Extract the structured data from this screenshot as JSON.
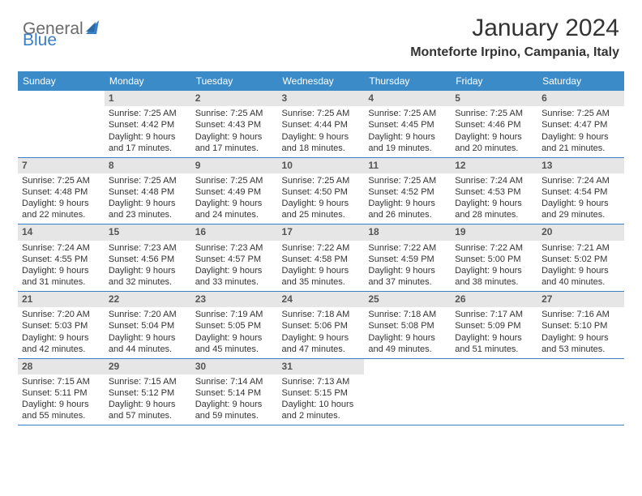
{
  "logo": {
    "word1": "General",
    "word2": "Blue"
  },
  "title": "January 2024",
  "location": "Monteforte Irpino, Campania, Italy",
  "colors": {
    "header_bg": "#3b8bc9",
    "header_text": "#ffffff",
    "daynum_bg": "#e6e6e6",
    "border": "#3b7fc4",
    "logo_gray": "#6b6b6b",
    "logo_blue": "#3b7fc4"
  },
  "day_headers": [
    "Sunday",
    "Monday",
    "Tuesday",
    "Wednesday",
    "Thursday",
    "Friday",
    "Saturday"
  ],
  "cells": [
    {
      "blank": true
    },
    {
      "day": "1",
      "sunrise": "Sunrise: 7:25 AM",
      "sunset": "Sunset: 4:42 PM",
      "daylight1": "Daylight: 9 hours",
      "daylight2": "and 17 minutes."
    },
    {
      "day": "2",
      "sunrise": "Sunrise: 7:25 AM",
      "sunset": "Sunset: 4:43 PM",
      "daylight1": "Daylight: 9 hours",
      "daylight2": "and 17 minutes."
    },
    {
      "day": "3",
      "sunrise": "Sunrise: 7:25 AM",
      "sunset": "Sunset: 4:44 PM",
      "daylight1": "Daylight: 9 hours",
      "daylight2": "and 18 minutes."
    },
    {
      "day": "4",
      "sunrise": "Sunrise: 7:25 AM",
      "sunset": "Sunset: 4:45 PM",
      "daylight1": "Daylight: 9 hours",
      "daylight2": "and 19 minutes."
    },
    {
      "day": "5",
      "sunrise": "Sunrise: 7:25 AM",
      "sunset": "Sunset: 4:46 PM",
      "daylight1": "Daylight: 9 hours",
      "daylight2": "and 20 minutes."
    },
    {
      "day": "6",
      "sunrise": "Sunrise: 7:25 AM",
      "sunset": "Sunset: 4:47 PM",
      "daylight1": "Daylight: 9 hours",
      "daylight2": "and 21 minutes."
    },
    {
      "day": "7",
      "sunrise": "Sunrise: 7:25 AM",
      "sunset": "Sunset: 4:48 PM",
      "daylight1": "Daylight: 9 hours",
      "daylight2": "and 22 minutes."
    },
    {
      "day": "8",
      "sunrise": "Sunrise: 7:25 AM",
      "sunset": "Sunset: 4:48 PM",
      "daylight1": "Daylight: 9 hours",
      "daylight2": "and 23 minutes."
    },
    {
      "day": "9",
      "sunrise": "Sunrise: 7:25 AM",
      "sunset": "Sunset: 4:49 PM",
      "daylight1": "Daylight: 9 hours",
      "daylight2": "and 24 minutes."
    },
    {
      "day": "10",
      "sunrise": "Sunrise: 7:25 AM",
      "sunset": "Sunset: 4:50 PM",
      "daylight1": "Daylight: 9 hours",
      "daylight2": "and 25 minutes."
    },
    {
      "day": "11",
      "sunrise": "Sunrise: 7:25 AM",
      "sunset": "Sunset: 4:52 PM",
      "daylight1": "Daylight: 9 hours",
      "daylight2": "and 26 minutes."
    },
    {
      "day": "12",
      "sunrise": "Sunrise: 7:24 AM",
      "sunset": "Sunset: 4:53 PM",
      "daylight1": "Daylight: 9 hours",
      "daylight2": "and 28 minutes."
    },
    {
      "day": "13",
      "sunrise": "Sunrise: 7:24 AM",
      "sunset": "Sunset: 4:54 PM",
      "daylight1": "Daylight: 9 hours",
      "daylight2": "and 29 minutes."
    },
    {
      "day": "14",
      "sunrise": "Sunrise: 7:24 AM",
      "sunset": "Sunset: 4:55 PM",
      "daylight1": "Daylight: 9 hours",
      "daylight2": "and 31 minutes."
    },
    {
      "day": "15",
      "sunrise": "Sunrise: 7:23 AM",
      "sunset": "Sunset: 4:56 PM",
      "daylight1": "Daylight: 9 hours",
      "daylight2": "and 32 minutes."
    },
    {
      "day": "16",
      "sunrise": "Sunrise: 7:23 AM",
      "sunset": "Sunset: 4:57 PM",
      "daylight1": "Daylight: 9 hours",
      "daylight2": "and 33 minutes."
    },
    {
      "day": "17",
      "sunrise": "Sunrise: 7:22 AM",
      "sunset": "Sunset: 4:58 PM",
      "daylight1": "Daylight: 9 hours",
      "daylight2": "and 35 minutes."
    },
    {
      "day": "18",
      "sunrise": "Sunrise: 7:22 AM",
      "sunset": "Sunset: 4:59 PM",
      "daylight1": "Daylight: 9 hours",
      "daylight2": "and 37 minutes."
    },
    {
      "day": "19",
      "sunrise": "Sunrise: 7:22 AM",
      "sunset": "Sunset: 5:00 PM",
      "daylight1": "Daylight: 9 hours",
      "daylight2": "and 38 minutes."
    },
    {
      "day": "20",
      "sunrise": "Sunrise: 7:21 AM",
      "sunset": "Sunset: 5:02 PM",
      "daylight1": "Daylight: 9 hours",
      "daylight2": "and 40 minutes."
    },
    {
      "day": "21",
      "sunrise": "Sunrise: 7:20 AM",
      "sunset": "Sunset: 5:03 PM",
      "daylight1": "Daylight: 9 hours",
      "daylight2": "and 42 minutes."
    },
    {
      "day": "22",
      "sunrise": "Sunrise: 7:20 AM",
      "sunset": "Sunset: 5:04 PM",
      "daylight1": "Daylight: 9 hours",
      "daylight2": "and 44 minutes."
    },
    {
      "day": "23",
      "sunrise": "Sunrise: 7:19 AM",
      "sunset": "Sunset: 5:05 PM",
      "daylight1": "Daylight: 9 hours",
      "daylight2": "and 45 minutes."
    },
    {
      "day": "24",
      "sunrise": "Sunrise: 7:18 AM",
      "sunset": "Sunset: 5:06 PM",
      "daylight1": "Daylight: 9 hours",
      "daylight2": "and 47 minutes."
    },
    {
      "day": "25",
      "sunrise": "Sunrise: 7:18 AM",
      "sunset": "Sunset: 5:08 PM",
      "daylight1": "Daylight: 9 hours",
      "daylight2": "and 49 minutes."
    },
    {
      "day": "26",
      "sunrise": "Sunrise: 7:17 AM",
      "sunset": "Sunset: 5:09 PM",
      "daylight1": "Daylight: 9 hours",
      "daylight2": "and 51 minutes."
    },
    {
      "day": "27",
      "sunrise": "Sunrise: 7:16 AM",
      "sunset": "Sunset: 5:10 PM",
      "daylight1": "Daylight: 9 hours",
      "daylight2": "and 53 minutes."
    },
    {
      "day": "28",
      "sunrise": "Sunrise: 7:15 AM",
      "sunset": "Sunset: 5:11 PM",
      "daylight1": "Daylight: 9 hours",
      "daylight2": "and 55 minutes."
    },
    {
      "day": "29",
      "sunrise": "Sunrise: 7:15 AM",
      "sunset": "Sunset: 5:12 PM",
      "daylight1": "Daylight: 9 hours",
      "daylight2": "and 57 minutes."
    },
    {
      "day": "30",
      "sunrise": "Sunrise: 7:14 AM",
      "sunset": "Sunset: 5:14 PM",
      "daylight1": "Daylight: 9 hours",
      "daylight2": "and 59 minutes."
    },
    {
      "day": "31",
      "sunrise": "Sunrise: 7:13 AM",
      "sunset": "Sunset: 5:15 PM",
      "daylight1": "Daylight: 10 hours",
      "daylight2": "and 2 minutes."
    },
    {
      "blank": true
    },
    {
      "blank": true
    },
    {
      "blank": true
    }
  ]
}
